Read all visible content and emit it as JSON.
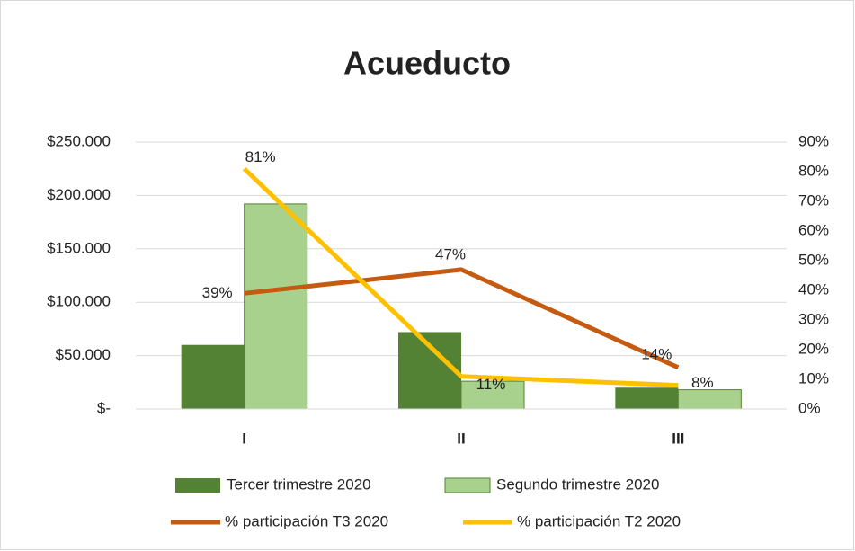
{
  "chart_data": {
    "type": "bar+line",
    "title": "Acueducto",
    "categories": [
      "I",
      "II",
      "III"
    ],
    "series": [
      {
        "name": "Tercer trimestre 2020",
        "type": "bar",
        "color": "#548235",
        "values": [
          60000,
          72000,
          20000
        ]
      },
      {
        "name": "Segundo trimestre 2020",
        "type": "bar",
        "color": "#a9d18e",
        "values": [
          192000,
          26000,
          18000
        ]
      },
      {
        "name": "% participación T3 2020",
        "type": "line",
        "axis": "y2",
        "color": "#c55a11",
        "values": [
          39,
          47,
          14
        ],
        "value_labels": [
          "39%",
          "47%",
          "14%"
        ]
      },
      {
        "name": "% participación T2 2020",
        "type": "line",
        "axis": "y2",
        "color": "#ffc000",
        "values": [
          81,
          11,
          8
        ],
        "value_labels": [
          "81%",
          "11%",
          "8%"
        ]
      }
    ],
    "ylim": [
      0,
      250000
    ],
    "yticks": [
      {
        "value": 0,
        "label": "$-"
      },
      {
        "value": 50000,
        "label": "$50.000"
      },
      {
        "value": 100000,
        "label": "$100.000"
      },
      {
        "value": 150000,
        "label": "$150.000"
      },
      {
        "value": 200000,
        "label": "$200.000"
      },
      {
        "value": 250000,
        "label": "$250.000"
      }
    ],
    "y2lim": [
      0,
      90
    ],
    "y2ticks": [
      {
        "value": 0,
        "label": "0%"
      },
      {
        "value": 10,
        "label": "10%"
      },
      {
        "value": 20,
        "label": "20%"
      },
      {
        "value": 30,
        "label": "30%"
      },
      {
        "value": 40,
        "label": "40%"
      },
      {
        "value": 50,
        "label": "50%"
      },
      {
        "value": 60,
        "label": "60%"
      },
      {
        "value": 70,
        "label": "70%"
      },
      {
        "value": 80,
        "label": "80%"
      },
      {
        "value": 90,
        "label": "90%"
      }
    ],
    "grid": true,
    "legend": "bottom"
  }
}
